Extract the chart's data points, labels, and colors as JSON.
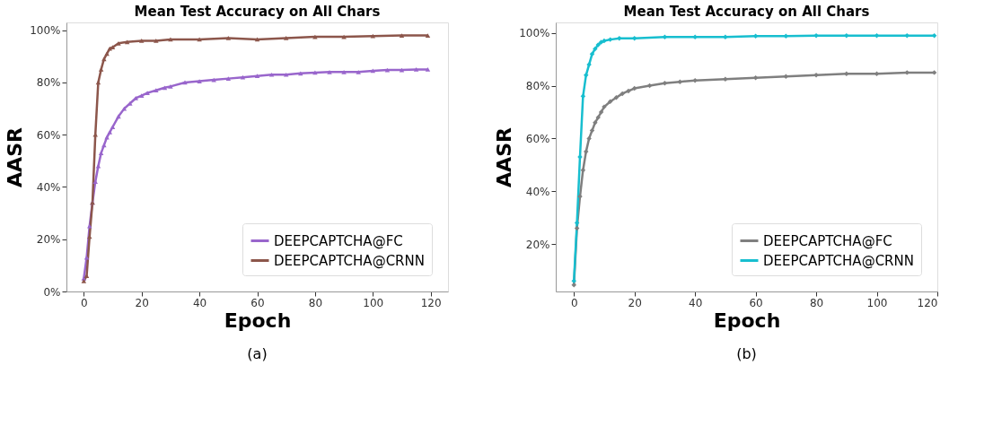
{
  "chart_data": [
    {
      "type": "line",
      "title": "Mean Test Accuracy on All Chars",
      "xlabel": "Epoch",
      "ylabel": "AASR",
      "annotations": [
        "(a)"
      ],
      "xlim": [
        -6,
        126
      ],
      "xticks": [
        0,
        20,
        40,
        60,
        80,
        100,
        120
      ],
      "ylim": [
        0,
        103
      ],
      "yticks": [
        {
          "value": 0,
          "label": "0%"
        },
        {
          "value": 20,
          "label": "20%"
        },
        {
          "value": 40,
          "label": "40%"
        },
        {
          "value": 60,
          "label": "60%"
        },
        {
          "value": 80,
          "label": "80%"
        },
        {
          "value": 100,
          "label": "100%"
        }
      ],
      "grid": false,
      "legend": "bottom right",
      "marker": "triangle",
      "series": [
        {
          "name": "DEEPCAPTCHA@FC",
          "color": "#9966cc",
          "x": [
            0,
            1,
            2,
            3,
            4,
            5,
            6,
            7,
            8,
            9,
            10,
            12,
            14,
            16,
            18,
            20,
            22,
            25,
            28,
            30,
            35,
            40,
            45,
            50,
            55,
            60,
            65,
            70,
            75,
            80,
            85,
            90,
            95,
            100,
            105,
            110,
            115,
            119
          ],
          "values": [
            5,
            13,
            25,
            34,
            42,
            48,
            53,
            56,
            59,
            61,
            63,
            67,
            70,
            72,
            74,
            75,
            76,
            77,
            78,
            78.5,
            80,
            80.5,
            81,
            81.5,
            82,
            82.5,
            83,
            83,
            83.5,
            83.8,
            84,
            84,
            84,
            84.5,
            84.8,
            84.8,
            85,
            85
          ]
        },
        {
          "name": "DEEPCAPTCHA@CRNN",
          "color": "#8c564b",
          "x": [
            0,
            1,
            2,
            3,
            4,
            5,
            6,
            7,
            8,
            9,
            10,
            12,
            15,
            20,
            25,
            30,
            40,
            50,
            60,
            70,
            80,
            90,
            100,
            110,
            119
          ],
          "values": [
            4,
            6,
            21,
            34,
            60,
            80,
            85,
            89,
            91,
            93,
            93.5,
            95,
            95.5,
            96,
            96,
            96.5,
            96.5,
            97,
            96.5,
            97,
            97.5,
            97.5,
            97.8,
            98,
            98
          ]
        }
      ]
    },
    {
      "type": "line",
      "title": "Mean Test Accuracy on All Chars",
      "xlabel": "Epoch",
      "ylabel": "AASR",
      "annotations": [
        "(b)"
      ],
      "xlim": [
        -6,
        120
      ],
      "xticks": [
        0,
        20,
        40,
        60,
        80,
        100,
        120
      ],
      "ylim": [
        2,
        104
      ],
      "yticks": [
        {
          "value": 20,
          "label": "20%"
        },
        {
          "value": 40,
          "label": "40%"
        },
        {
          "value": 60,
          "label": "60%"
        },
        {
          "value": 80,
          "label": "80%"
        },
        {
          "value": 100,
          "label": "100%"
        }
      ],
      "grid": false,
      "legend": "bottom right",
      "marker": "diamond",
      "series": [
        {
          "name": "DEEPCAPTCHA@FC",
          "color": "#7f7f7f",
          "x": [
            0,
            1,
            2,
            3,
            4,
            5,
            6,
            7,
            8,
            9,
            10,
            12,
            14,
            16,
            18,
            20,
            25,
            30,
            35,
            40,
            50,
            60,
            70,
            80,
            90,
            100,
            110,
            119
          ],
          "values": [
            4.5,
            26,
            38,
            48,
            55,
            60,
            63,
            66,
            68,
            70,
            72,
            74,
            75.5,
            77,
            78,
            79,
            80,
            81,
            81.5,
            82,
            82.5,
            83,
            83.5,
            84,
            84.5,
            84.5,
            85,
            85
          ]
        },
        {
          "name": "DEEPCAPTCHA@CRNN",
          "color": "#17becf",
          "x": [
            0,
            1,
            2,
            3,
            4,
            5,
            6,
            7,
            8,
            9,
            10,
            12,
            15,
            20,
            30,
            40,
            50,
            60,
            70,
            80,
            90,
            100,
            110,
            119
          ],
          "values": [
            6,
            28,
            53,
            76,
            84,
            88,
            92,
            94,
            95.5,
            96.5,
            97,
            97.5,
            98,
            98,
            98.5,
            98.5,
            98.5,
            98.8,
            98.8,
            99,
            99,
            99,
            99,
            99
          ]
        }
      ]
    }
  ]
}
